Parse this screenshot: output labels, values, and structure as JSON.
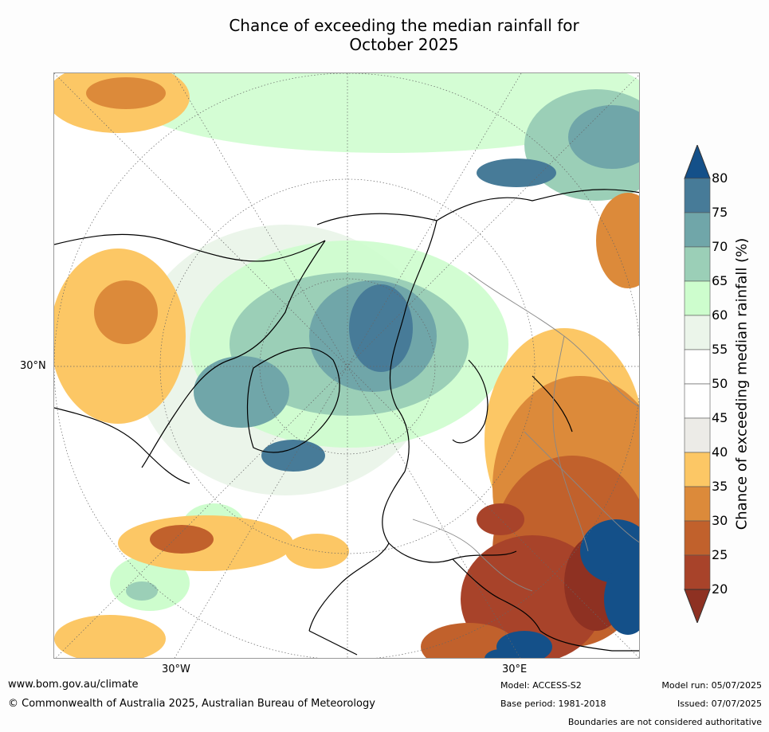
{
  "title": {
    "line1": "Chance of exceeding the median rainfall for",
    "line2": "October 2025"
  },
  "axes": {
    "lat_30n": "30°N",
    "lon_30w": "30°W",
    "lon_30e": "30°E"
  },
  "colorbar": {
    "title": "Chance of exceeding median rainfall (%)",
    "ticks": [
      "80",
      "75",
      "70",
      "65",
      "60",
      "55",
      "50",
      "45",
      "40",
      "35",
      "30",
      "25",
      "20"
    ],
    "colors": [
      "#145089",
      "#477b98",
      "#70a6a9",
      "#9bcfb7",
      "#cdfdcd",
      "#ebf5ea",
      "#ffffff",
      "#ffffff",
      "#ecebe7",
      "#fcc765",
      "#dc8a3a",
      "#c1612c",
      "#a8432a",
      "#8e3122"
    ]
  },
  "footer": {
    "url": "www.bom.gov.au/climate",
    "copyright": "© Commonwealth of Australia 2025, Australian Bureau of Meteorology",
    "model": "Model: ACCESS-S2",
    "base_period": "Base period: 1981-2018",
    "model_run": "Model run: 05/07/2025",
    "issued": "Issued: 07/07/2025",
    "disclaimer": "Boundaries are not considered authoritative"
  }
}
